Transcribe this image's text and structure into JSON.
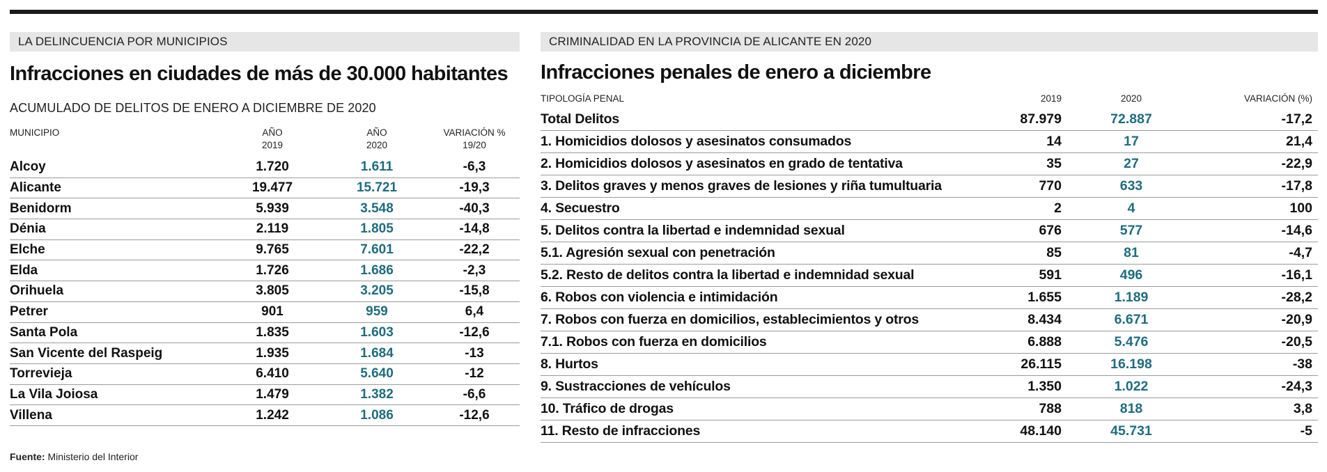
{
  "left": {
    "section": "LA DELINCUENCIA POR MUNICIPIOS",
    "headline": "Infracciones en ciudades de más de 30.000 habitantes",
    "subtitle": "ACUMULADO DE DELITOS DE ENERO A DICIEMBRE DE 2020",
    "columns": {
      "municipio": "MUNICIPIO",
      "y2019_a": "AÑO",
      "y2019_b": "2019",
      "y2020_a": "AÑO",
      "y2020_b": "2020",
      "var_a": "VARIACIÓN %",
      "var_b": "19/20"
    },
    "rows": [
      {
        "name": "Alcoy",
        "y2019": "1.720",
        "y2020": "1.611",
        "var": "-6,3"
      },
      {
        "name": "Alicante",
        "y2019": "19.477",
        "y2020": "15.721",
        "var": "-19,3"
      },
      {
        "name": "Benidorm",
        "y2019": "5.939",
        "y2020": "3.548",
        "var": "-40,3"
      },
      {
        "name": "Dénia",
        "y2019": "2.119",
        "y2020": "1.805",
        "var": "-14,8"
      },
      {
        "name": "Elche",
        "y2019": "9.765",
        "y2020": "7.601",
        "var": "-22,2"
      },
      {
        "name": "Elda",
        "y2019": "1.726",
        "y2020": "1.686",
        "var": "-2,3"
      },
      {
        "name": "Orihuela",
        "y2019": "3.805",
        "y2020": "3.205",
        "var": "-15,8"
      },
      {
        "name": "Petrer",
        "y2019": "901",
        "y2020": "959",
        "var": "6,4"
      },
      {
        "name": "Santa Pola",
        "y2019": "1.835",
        "y2020": "1.603",
        "var": "-12,6"
      },
      {
        "name": "San Vicente del Raspeig",
        "y2019": "1.935",
        "y2020": "1.684",
        "var": "-13"
      },
      {
        "name": "Torrevieja",
        "y2019": "6.410",
        "y2020": "5.640",
        "var": "-12"
      },
      {
        "name": "La Vila Joiosa",
        "y2019": "1.479",
        "y2020": "1.382",
        "var": "-6,6"
      },
      {
        "name": "Villena",
        "y2019": "1.242",
        "y2020": "1.086",
        "var": "-12,6"
      }
    ],
    "source_label": "Fuente:",
    "source_text": " Ministerio del Interior"
  },
  "right": {
    "section": "CRIMINALIDAD EN LA PROVINCIA DE ALICANTE EN 2020",
    "headline": "Infracciones penales de enero a diciembre",
    "columns": {
      "tipologia": "TIPOLOGÍA PENAL",
      "y2019": "2019",
      "y2020": "2020",
      "var": "VARIACIÓN (%)"
    },
    "rows": [
      {
        "name": "Total Delitos",
        "y2019": "87.979",
        "y2020": "72.887",
        "var": "-17,2"
      },
      {
        "name": "1. Homicidios dolosos y asesinatos consumados",
        "y2019": "14",
        "y2020": "17",
        "var": "21,4"
      },
      {
        "name": "2. Homicidios dolosos y asesinatos en grado de tentativa",
        "y2019": "35",
        "y2020": "27",
        "var": "-22,9"
      },
      {
        "name": "3. Delitos graves y menos graves de lesiones y riña tumultuaria",
        "y2019": "770",
        "y2020": "633",
        "var": "-17,8"
      },
      {
        "name": "4. Secuestro",
        "y2019": "2",
        "y2020": "4",
        "var": "100"
      },
      {
        "name": "5. Delitos contra la libertad e indemnidad sexual",
        "y2019": "676",
        "y2020": "577",
        "var": "-14,6"
      },
      {
        "name": "5.1. Agresión sexual con penetración",
        "y2019": "85",
        "y2020": "81",
        "var": "-4,7"
      },
      {
        "name": "5.2. Resto de delitos contra la libertad e indemnidad sexual",
        "y2019": "591",
        "y2020": "496",
        "var": "-16,1"
      },
      {
        "name": "6. Robos con violencia e intimidación",
        "y2019": "1.655",
        "y2020": "1.189",
        "var": "-28,2"
      },
      {
        "name": "7. Robos con fuerza en domicilios, establecimientos y otros",
        "y2019": "8.434",
        "y2020": "6.671",
        "var": "-20,9"
      },
      {
        "name": "7.1. Robos con fuerza en domicilios",
        "y2019": "6.888",
        "y2020": "5.476",
        "var": "-20,5"
      },
      {
        "name": "8. Hurtos",
        "y2019": "26.115",
        "y2020": "16.198",
        "var": "-38"
      },
      {
        "name": "9. Sustracciones de vehículos",
        "y2019": "1.350",
        "y2020": "1.022",
        "var": "-24,3"
      },
      {
        "name": "10. Tráfico de drogas",
        "y2019": "788",
        "y2020": "818",
        "var": "3,8"
      },
      {
        "name": "11. Resto de infracciones",
        "y2019": "48.140",
        "y2020": "45.731",
        "var": "-5"
      }
    ]
  },
  "colors": {
    "accent_2020": "#1f6c80",
    "band": "#e6e6e6",
    "rule": "#1a1a1a"
  }
}
